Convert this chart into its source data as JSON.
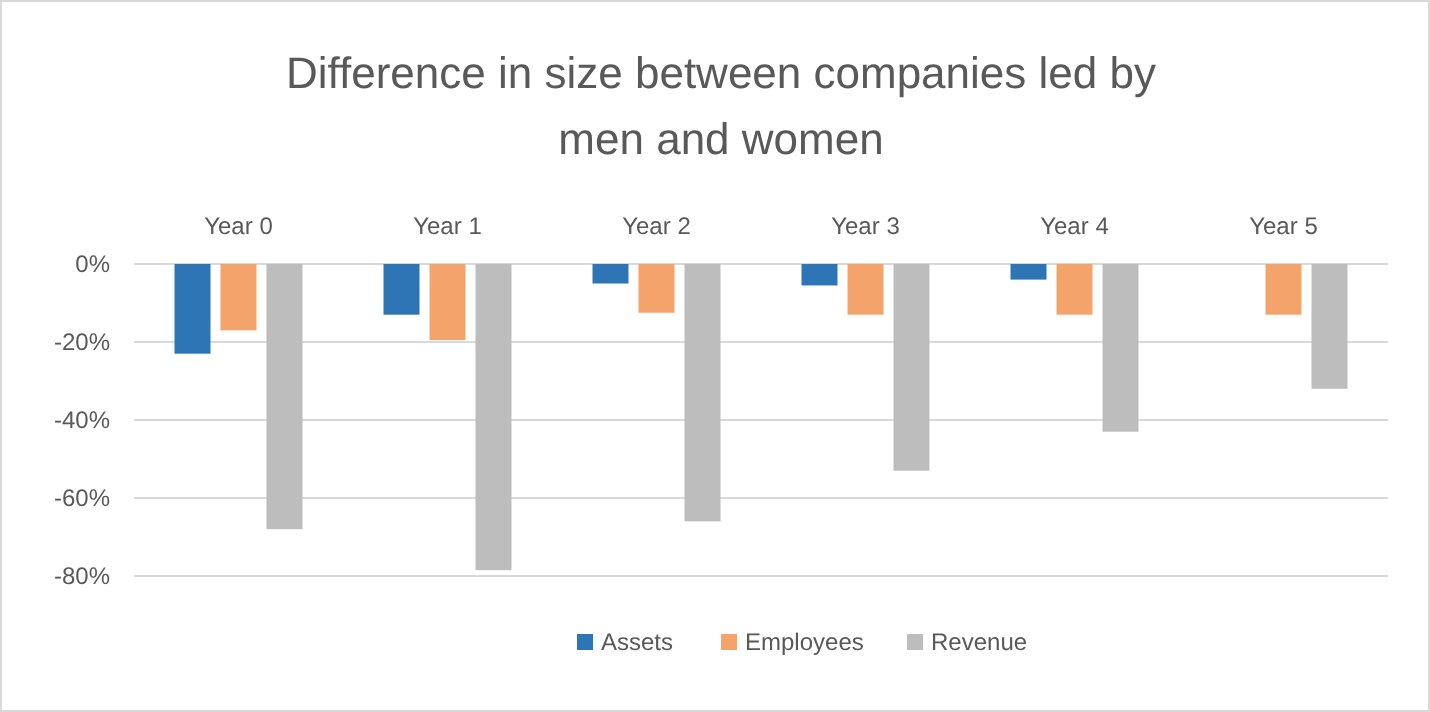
{
  "chart_data": {
    "type": "bar",
    "title": "Difference in size between companies led by men and women",
    "categories": [
      "Year 0",
      "Year 1",
      "Year 2",
      "Year 3",
      "Year 4",
      "Year 5"
    ],
    "series": [
      {
        "name": "Assets",
        "color": "#2e75b6",
        "values": [
          -23,
          -13,
          -5,
          -5.5,
          -4,
          0
        ]
      },
      {
        "name": "Employees",
        "color": "#f4a46a",
        "values": [
          -17,
          -19.5,
          -12.5,
          -13,
          -13,
          -13
        ]
      },
      {
        "name": "Revenue",
        "color": "#bdbdbd",
        "values": [
          -68,
          -78.5,
          -66,
          -53,
          -43,
          -32
        ]
      }
    ],
    "ylim": [
      -80,
      0
    ],
    "yticks": [
      {
        "value": 0,
        "label": "0%"
      },
      {
        "value": -20,
        "label": "-20%"
      },
      {
        "value": -40,
        "label": "-40%"
      },
      {
        "value": -60,
        "label": "-60%"
      },
      {
        "value": -80,
        "label": "-80%"
      }
    ],
    "grid": "y",
    "legend": "bottom"
  }
}
